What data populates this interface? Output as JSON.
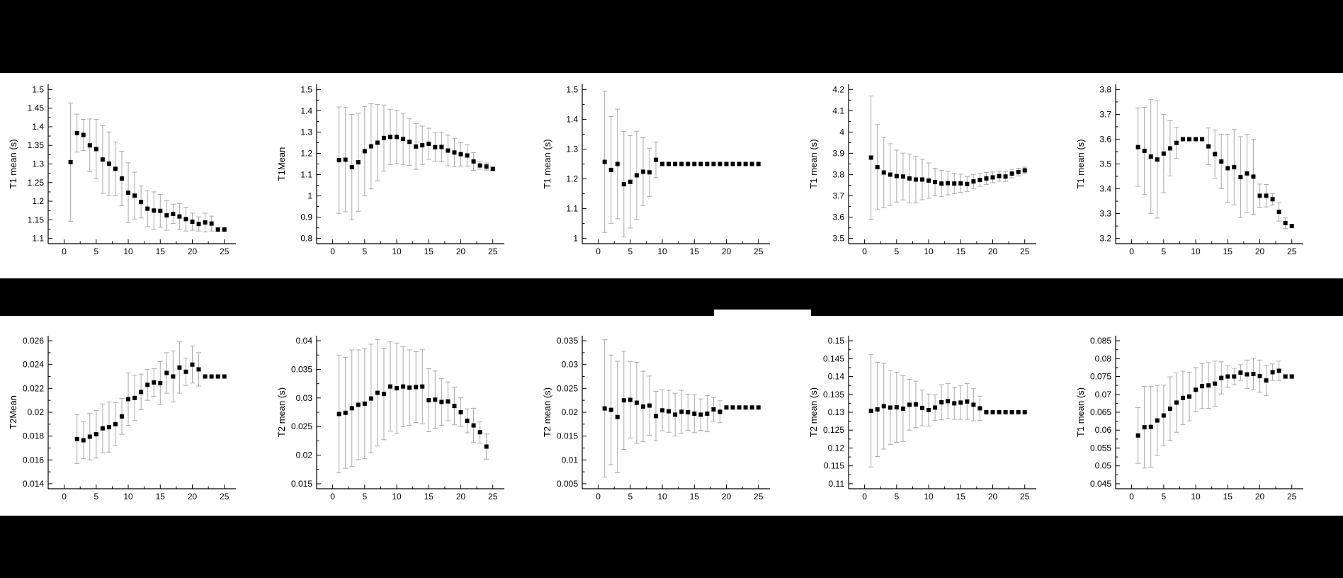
{
  "figure": {
    "rows": 2,
    "cols": 5,
    "page_background": "#000000",
    "panel_background": "#ffffff"
  },
  "colors": {
    "marker": "#000000",
    "errorbar": "#a9a9a9",
    "axis": "#000000",
    "tick_label": "#000000"
  },
  "chart_data": [
    {
      "type": "scatter",
      "title": "",
      "ylabel": "T1 mean (s)",
      "xlabel": "",
      "legend": null,
      "grid": false,
      "marker": "square",
      "ylim": [
        1.1,
        1.5
      ],
      "ytick_step": 0.05,
      "xlim": [
        0,
        25
      ],
      "xtick_step": 5,
      "x": [
        1,
        2,
        3,
        4,
        5,
        6,
        7,
        8,
        9,
        10,
        11,
        12,
        13,
        14,
        15,
        16,
        17,
        18,
        19,
        20,
        21,
        22,
        23,
        24,
        25
      ],
      "y": [
        1.305,
        1.383,
        1.378,
        1.35,
        1.34,
        1.312,
        1.301,
        1.287,
        1.261,
        1.223,
        1.215,
        1.198,
        1.18,
        1.175,
        1.174,
        1.162,
        1.166,
        1.159,
        1.152,
        1.145,
        1.139,
        1.143,
        1.14,
        1.124,
        1.124
      ],
      "yerr": [
        0.159,
        0.051,
        0.042,
        0.071,
        0.08,
        0.091,
        0.085,
        0.072,
        0.073,
        0.08,
        0.063,
        0.043,
        0.048,
        0.05,
        0.044,
        0.04,
        0.026,
        0.035,
        0.032,
        0.023,
        0.019,
        0.025,
        0.02,
        0.005,
        0.005
      ]
    },
    {
      "type": "scatter",
      "title": "",
      "ylabel": "T1Mean",
      "xlabel": "",
      "legend": null,
      "grid": false,
      "marker": "square",
      "ylim": [
        0.8,
        1.5
      ],
      "ytick_step": 0.1,
      "xlim": [
        0,
        25
      ],
      "xtick_step": 5,
      "x": [
        1,
        2,
        3,
        4,
        5,
        6,
        7,
        8,
        9,
        10,
        11,
        12,
        13,
        14,
        15,
        16,
        17,
        18,
        19,
        20,
        21,
        22,
        23,
        24,
        25
      ],
      "y": [
        1.168,
        1.17,
        1.135,
        1.158,
        1.21,
        1.233,
        1.25,
        1.272,
        1.277,
        1.277,
        1.268,
        1.254,
        1.232,
        1.238,
        1.245,
        1.229,
        1.23,
        1.213,
        1.204,
        1.196,
        1.19,
        1.162,
        1.143,
        1.138,
        1.127
      ],
      "yerr": [
        0.25,
        0.245,
        0.248,
        0.23,
        0.21,
        0.2,
        0.18,
        0.155,
        0.13,
        0.125,
        0.12,
        0.11,
        0.107,
        0.09,
        0.073,
        0.067,
        0.07,
        0.072,
        0.067,
        0.055,
        0.05,
        0.042,
        0.018,
        0.017,
        0.008
      ]
    },
    {
      "type": "scatter",
      "title": "",
      "ylabel": "T1 mean (s)",
      "xlabel": "",
      "legend": null,
      "grid": false,
      "marker": "square",
      "ylim": [
        1.0,
        1.5
      ],
      "ytick_step": 0.1,
      "xlim": [
        0,
        25
      ],
      "xtick_step": 5,
      "x": [
        1,
        2,
        3,
        4,
        5,
        6,
        7,
        8,
        9,
        10,
        11,
        12,
        13,
        14,
        15,
        16,
        17,
        18,
        19,
        20,
        21,
        22,
        23,
        24,
        25
      ],
      "y": [
        1.257,
        1.23,
        1.25,
        1.182,
        1.19,
        1.212,
        1.224,
        1.222,
        1.264,
        1.25,
        1.25,
        1.25,
        1.25,
        1.25,
        1.25,
        1.25,
        1.25,
        1.25,
        1.25,
        1.25,
        1.25,
        1.25,
        1.25,
        1.25,
        1.25
      ],
      "yerr": [
        0.237,
        0.179,
        0.184,
        0.177,
        0.155,
        0.148,
        0.114,
        0.081,
        0.06,
        0,
        0,
        0,
        0,
        0,
        0,
        0,
        0,
        0,
        0,
        0,
        0,
        0,
        0,
        0,
        0
      ]
    },
    {
      "type": "scatter",
      "title": "",
      "ylabel": "T1 mean (s)",
      "xlabel": "",
      "legend": null,
      "grid": false,
      "marker": "square",
      "ylim": [
        3.5,
        4.2
      ],
      "ytick_step": 0.1,
      "xlim": [
        0,
        25
      ],
      "xtick_step": 5,
      "x": [
        1,
        2,
        3,
        4,
        5,
        6,
        7,
        8,
        9,
        10,
        11,
        12,
        13,
        14,
        15,
        16,
        17,
        18,
        19,
        20,
        21,
        22,
        23,
        24,
        25
      ],
      "y": [
        3.88,
        3.835,
        3.81,
        3.8,
        3.793,
        3.791,
        3.782,
        3.777,
        3.777,
        3.772,
        3.765,
        3.758,
        3.76,
        3.758,
        3.759,
        3.756,
        3.768,
        3.775,
        3.782,
        3.787,
        3.793,
        3.791,
        3.805,
        3.812,
        3.82
      ],
      "yerr": [
        0.29,
        0.2,
        0.165,
        0.145,
        0.122,
        0.11,
        0.115,
        0.11,
        0.095,
        0.083,
        0.065,
        0.062,
        0.055,
        0.048,
        0.043,
        0.035,
        0.033,
        0.03,
        0.028,
        0.025,
        0.024,
        0.023,
        0.02,
        0.018,
        0.015
      ]
    },
    {
      "type": "scatter",
      "title": "",
      "ylabel": "T1 mean (s)",
      "xlabel": "",
      "legend": null,
      "grid": false,
      "marker": "square",
      "ylim": [
        3.2,
        3.8
      ],
      "ytick_step": 0.1,
      "xlim": [
        0,
        25
      ],
      "xtick_step": 5,
      "x": [
        1,
        2,
        3,
        4,
        5,
        6,
        7,
        8,
        9,
        10,
        11,
        12,
        13,
        14,
        15,
        16,
        17,
        18,
        19,
        20,
        21,
        22,
        23,
        24,
        25
      ],
      "y": [
        3.568,
        3.553,
        3.53,
        3.518,
        3.542,
        3.563,
        3.585,
        3.6,
        3.6,
        3.6,
        3.6,
        3.571,
        3.54,
        3.51,
        3.483,
        3.487,
        3.447,
        3.462,
        3.449,
        3.372,
        3.372,
        3.358,
        3.307,
        3.262,
        3.25
      ],
      "yerr": [
        0.158,
        0.175,
        0.23,
        0.236,
        0.158,
        0.111,
        0.063,
        0,
        0,
        0,
        0,
        0.074,
        0.097,
        0.11,
        0.137,
        0.152,
        0.163,
        0.158,
        0.151,
        0.047,
        0.045,
        0.023,
        0.037,
        0.022,
        0
      ]
    },
    {
      "type": "scatter",
      "title": "",
      "ylabel": "T2Mean",
      "xlabel": "",
      "legend": null,
      "grid": false,
      "marker": "square",
      "ylim": [
        0.014,
        0.026
      ],
      "ytick_step": 0.002,
      "xlim": [
        0,
        25
      ],
      "xtick_step": 5,
      "x": [
        2,
        3,
        4,
        5,
        6,
        7,
        8,
        9,
        10,
        11,
        12,
        13,
        14,
        15,
        16,
        17,
        18,
        19,
        20,
        21,
        22,
        23,
        24,
        25
      ],
      "y": [
        0.01775,
        0.01765,
        0.01795,
        0.01815,
        0.01865,
        0.01875,
        0.019,
        0.01965,
        0.0211,
        0.0212,
        0.0217,
        0.0223,
        0.0225,
        0.02245,
        0.0233,
        0.023,
        0.02375,
        0.0234,
        0.024,
        0.0236,
        0.023,
        0.023,
        0.023,
        0.023
      ],
      "yerr": [
        0.00205,
        0.00155,
        0.00195,
        0.002,
        0.00205,
        0.0021,
        0.0018,
        0.0015,
        0.0022,
        0.0019,
        0.0015,
        0.0013,
        0.00115,
        0.0018,
        0.0017,
        0.00215,
        0.00215,
        0.00115,
        0.00155,
        0.0014,
        0,
        0,
        0,
        0
      ]
    },
    {
      "type": "scatter",
      "title": "",
      "ylabel": "T2 mean (s)",
      "xlabel": "",
      "legend": null,
      "grid": false,
      "marker": "square",
      "ylim": [
        0.015,
        0.04
      ],
      "ytick_step": 0.005,
      "xlim": [
        0,
        25
      ],
      "xtick_step": 5,
      "x": [
        1,
        2,
        3,
        4,
        5,
        6,
        7,
        8,
        9,
        10,
        11,
        12,
        13,
        14,
        15,
        16,
        17,
        18,
        19,
        20,
        21,
        22,
        23,
        24
      ],
      "y": [
        0.0272,
        0.0274,
        0.0282,
        0.0288,
        0.029,
        0.0299,
        0.0309,
        0.0307,
        0.032,
        0.0317,
        0.032,
        0.0318,
        0.0319,
        0.032,
        0.0296,
        0.0297,
        0.0293,
        0.0294,
        0.0286,
        0.0275,
        0.026,
        0.0252,
        0.024,
        0.0215
      ],
      "yerr": [
        0.0103,
        0.0097,
        0.0102,
        0.0096,
        0.0096,
        0.0095,
        0.0093,
        0.008,
        0.0078,
        0.0079,
        0.007,
        0.0066,
        0.0062,
        0.0065,
        0.0055,
        0.005,
        0.0041,
        0.0034,
        0.0033,
        0.0025,
        0.0021,
        0.003,
        0.0019,
        0.0022
      ]
    },
    {
      "type": "scatter",
      "title": "",
      "ylabel": "T2 mean (s)",
      "xlabel": "",
      "legend": null,
      "grid": false,
      "marker": "square",
      "ylim": [
        0.005,
        0.035
      ],
      "ytick_step": 0.005,
      "xlim": [
        0,
        25
      ],
      "xtick_step": 5,
      "x": [
        1,
        2,
        3,
        4,
        5,
        6,
        7,
        8,
        9,
        10,
        11,
        12,
        13,
        14,
        15,
        16,
        17,
        18,
        19,
        20,
        21,
        22,
        23,
        24,
        25
      ],
      "y": [
        0.0208,
        0.0205,
        0.019,
        0.0225,
        0.0226,
        0.022,
        0.0212,
        0.0214,
        0.0192,
        0.0204,
        0.0202,
        0.0195,
        0.0201,
        0.02,
        0.0197,
        0.0195,
        0.0197,
        0.0206,
        0.0201,
        0.021,
        0.021,
        0.021,
        0.021,
        0.021,
        0.021
      ],
      "yerr": [
        0.0144,
        0.0115,
        0.0117,
        0.0103,
        0.008,
        0.0085,
        0.0074,
        0.0062,
        0.0052,
        0.0043,
        0.0044,
        0.0045,
        0.0045,
        0.0038,
        0.004,
        0.0033,
        0.0038,
        0.0025,
        0.0023,
        0,
        0,
        0,
        0,
        0,
        0
      ]
    },
    {
      "type": "scatter",
      "title": "",
      "ylabel": "T2 mean (s)",
      "xlabel": "",
      "legend": null,
      "grid": false,
      "marker": "square",
      "ylim": [
        0.11,
        0.15
      ],
      "ytick_step": 0.005,
      "xlim": [
        0,
        25
      ],
      "xtick_step": 5,
      "x": [
        1,
        2,
        3,
        4,
        5,
        6,
        7,
        8,
        9,
        10,
        11,
        12,
        13,
        14,
        15,
        16,
        17,
        18,
        19,
        20,
        21,
        22,
        23,
        24,
        25
      ],
      "y": [
        0.1304,
        0.1308,
        0.1317,
        0.1313,
        0.1314,
        0.131,
        0.1321,
        0.1322,
        0.1312,
        0.1306,
        0.1313,
        0.1328,
        0.1331,
        0.1325,
        0.1327,
        0.133,
        0.1321,
        0.1311,
        0.13,
        0.13,
        0.13,
        0.13,
        0.13,
        0.13,
        0.13
      ],
      "yerr": [
        0.0157,
        0.0132,
        0.012,
        0.0103,
        0.0098,
        0.0092,
        0.0071,
        0.0065,
        0.005,
        0.0045,
        0.0036,
        0.0049,
        0.0049,
        0.0045,
        0.0047,
        0.005,
        0.0045,
        0.0034,
        0,
        0,
        0,
        0,
        0,
        0,
        0
      ]
    },
    {
      "type": "scatter",
      "title": "",
      "ylabel": "T1 mean (s)",
      "xlabel": "",
      "legend": null,
      "grid": false,
      "marker": "square",
      "ylim": [
        0.045,
        0.085
      ],
      "ytick_step": 0.005,
      "xlim": [
        0,
        25
      ],
      "xtick_step": 5,
      "x": [
        1,
        2,
        3,
        4,
        5,
        6,
        7,
        8,
        9,
        10,
        11,
        12,
        13,
        14,
        15,
        16,
        17,
        18,
        19,
        20,
        21,
        22,
        23,
        24,
        25
      ],
      "y": [
        0.0585,
        0.0608,
        0.0609,
        0.0627,
        0.0641,
        0.066,
        0.0677,
        0.069,
        0.0694,
        0.0713,
        0.0723,
        0.0725,
        0.073,
        0.0746,
        0.075,
        0.075,
        0.0761,
        0.0756,
        0.0757,
        0.0751,
        0.0739,
        0.0762,
        0.0766,
        0.075,
        0.075
      ],
      "yerr": [
        0.0078,
        0.0114,
        0.0113,
        0.0098,
        0.0085,
        0.0089,
        0.0083,
        0.0075,
        0.0068,
        0.0062,
        0.0063,
        0.0064,
        0.0063,
        0.0045,
        0.003,
        0.0023,
        0.0022,
        0.004,
        0.0044,
        0.0045,
        0.0042,
        0.0023,
        0.0027,
        0.0005,
        0.0005
      ]
    }
  ]
}
